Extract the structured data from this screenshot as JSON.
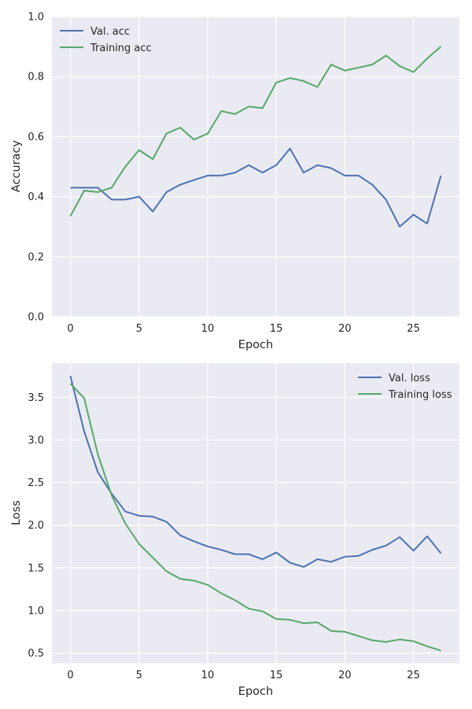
{
  "colors": {
    "background": "#eaeaf2",
    "grid": "#ffffff",
    "series_blue": "#4c72b0",
    "series_green": "#55a868",
    "text": "#262626"
  },
  "chart_data": [
    {
      "type": "line",
      "title": "",
      "xlabel": "Epoch",
      "ylabel": "Accuracy",
      "xlim": [
        -1.35,
        28.35
      ],
      "ylim": [
        0.0,
        1.0
      ],
      "xticks": [
        0,
        5,
        10,
        15,
        20,
        25
      ],
      "xtick_labels": [
        "0",
        "5",
        "10",
        "15",
        "20",
        "25"
      ],
      "yticks": [
        0.0,
        0.2,
        0.4,
        0.6,
        0.8,
        1.0
      ],
      "ytick_labels": [
        "0.0",
        "0.2",
        "0.4",
        "0.6",
        "0.8",
        "1.0"
      ],
      "grid": true,
      "legend_position": "top-left",
      "x": [
        0,
        1,
        2,
        3,
        4,
        5,
        6,
        7,
        8,
        9,
        10,
        11,
        12,
        13,
        14,
        15,
        16,
        17,
        18,
        19,
        20,
        21,
        22,
        23,
        24,
        25,
        26,
        27
      ],
      "series": [
        {
          "name": "Val. acc",
          "color": "#4c72b0",
          "values": [
            0.43,
            0.43,
            0.43,
            0.39,
            0.39,
            0.4,
            0.35,
            0.415,
            0.44,
            0.455,
            0.47,
            0.47,
            0.48,
            0.505,
            0.48,
            0.505,
            0.56,
            0.48,
            0.505,
            0.495,
            0.47,
            0.47,
            0.44,
            0.39,
            0.3,
            0.34,
            0.31,
            0.47
          ]
        },
        {
          "name": "Training acc",
          "color": "#55a868",
          "values": [
            0.335,
            0.42,
            0.415,
            0.43,
            0.5,
            0.555,
            0.525,
            0.61,
            0.63,
            0.59,
            0.61,
            0.685,
            0.675,
            0.7,
            0.695,
            0.78,
            0.795,
            0.785,
            0.765,
            0.84,
            0.82,
            0.83,
            0.84,
            0.87,
            0.835,
            0.815,
            0.86,
            0.9
          ]
        }
      ]
    },
    {
      "type": "line",
      "title": "",
      "xlabel": "Epoch",
      "ylabel": "Loss",
      "xlim": [
        -1.35,
        28.35
      ],
      "ylim": [
        0.38,
        3.9
      ],
      "xticks": [
        0,
        5,
        10,
        15,
        20,
        25
      ],
      "xtick_labels": [
        "0",
        "5",
        "10",
        "15",
        "20",
        "25"
      ],
      "yticks": [
        0.5,
        1.0,
        1.5,
        2.0,
        2.5,
        3.0,
        3.5
      ],
      "ytick_labels": [
        "0.5",
        "1.0",
        "1.5",
        "2.0",
        "2.5",
        "3.0",
        "3.5"
      ],
      "grid": true,
      "legend_position": "top-right",
      "x": [
        0,
        1,
        2,
        3,
        4,
        5,
        6,
        7,
        8,
        9,
        10,
        11,
        12,
        13,
        14,
        15,
        16,
        17,
        18,
        19,
        20,
        21,
        22,
        23,
        24,
        25,
        26,
        27
      ],
      "series": [
        {
          "name": "Val. loss",
          "color": "#4c72b0",
          "values": [
            3.75,
            3.1,
            2.62,
            2.37,
            2.16,
            2.11,
            2.1,
            2.04,
            1.88,
            1.81,
            1.75,
            1.71,
            1.66,
            1.66,
            1.6,
            1.68,
            1.56,
            1.51,
            1.6,
            1.57,
            1.63,
            1.64,
            1.71,
            1.76,
            1.86,
            1.7,
            1.87,
            1.67
          ]
        },
        {
          "name": "Training loss",
          "color": "#55a868",
          "values": [
            3.66,
            3.49,
            2.83,
            2.35,
            2.02,
            1.78,
            1.62,
            1.46,
            1.37,
            1.35,
            1.3,
            1.2,
            1.12,
            1.02,
            0.99,
            0.9,
            0.89,
            0.85,
            0.86,
            0.76,
            0.75,
            0.7,
            0.65,
            0.63,
            0.66,
            0.64,
            0.58,
            0.53
          ]
        }
      ]
    }
  ]
}
